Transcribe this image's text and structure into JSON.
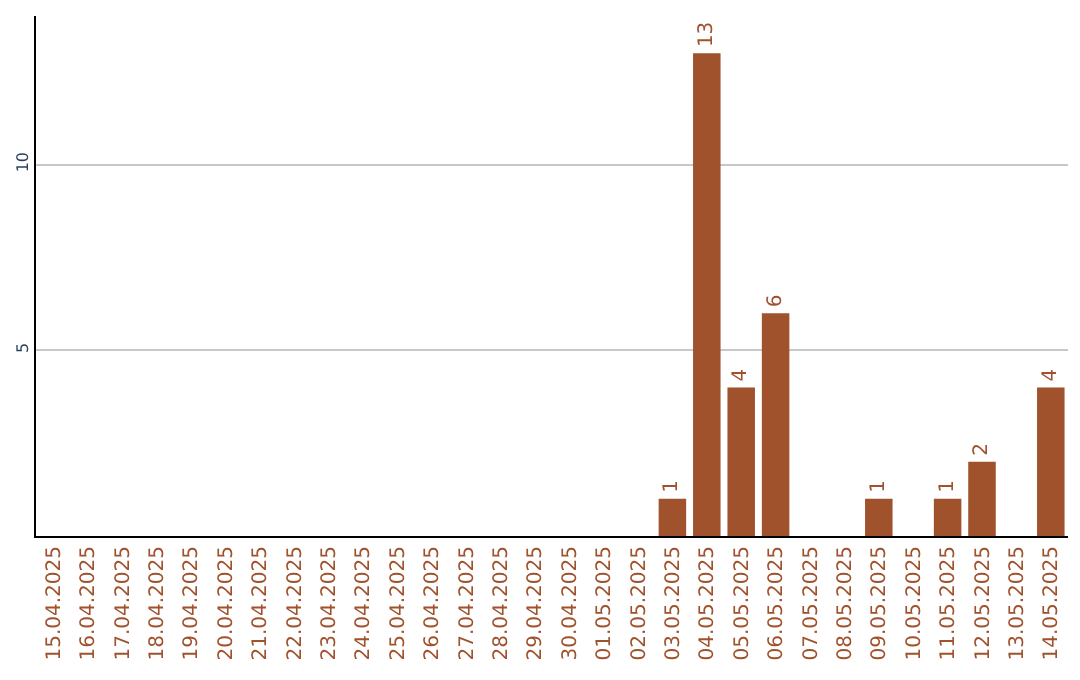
{
  "chart_data": {
    "type": "bar",
    "categories": [
      "15.04.2025",
      "16.04.2025",
      "17.04.2025",
      "18.04.2025",
      "19.04.2025",
      "20.04.2025",
      "21.04.2025",
      "22.04.2025",
      "23.04.2025",
      "24.04.2025",
      "25.04.2025",
      "26.04.2025",
      "27.04.2025",
      "28.04.2025",
      "29.04.2025",
      "30.04.2025",
      "01.05.2025",
      "02.05.2025",
      "03.05.2025",
      "04.05.2025",
      "05.05.2025",
      "06.05.2025",
      "07.05.2025",
      "08.05.2025",
      "09.05.2025",
      "10.05.2025",
      "11.05.2025",
      "12.05.2025",
      "13.05.2025",
      "14.05.2025"
    ],
    "values": [
      0,
      0,
      0,
      0,
      0,
      0,
      0,
      0,
      0,
      0,
      0,
      0,
      0,
      0,
      0,
      0,
      0,
      0,
      1,
      13,
      4,
      6,
      0,
      0,
      1,
      0,
      1,
      2,
      0,
      4
    ],
    "value_labels": [
      null,
      null,
      null,
      null,
      null,
      null,
      null,
      null,
      null,
      null,
      null,
      null,
      null,
      null,
      null,
      null,
      null,
      null,
      "1",
      "13",
      "4",
      "6",
      null,
      null,
      "1",
      null,
      "1",
      "2",
      null,
      "4"
    ],
    "color": "#a0522d",
    "ylim": [
      0,
      14
    ],
    "yticks": [
      5,
      10
    ],
    "grid": "y",
    "legend": false
  }
}
